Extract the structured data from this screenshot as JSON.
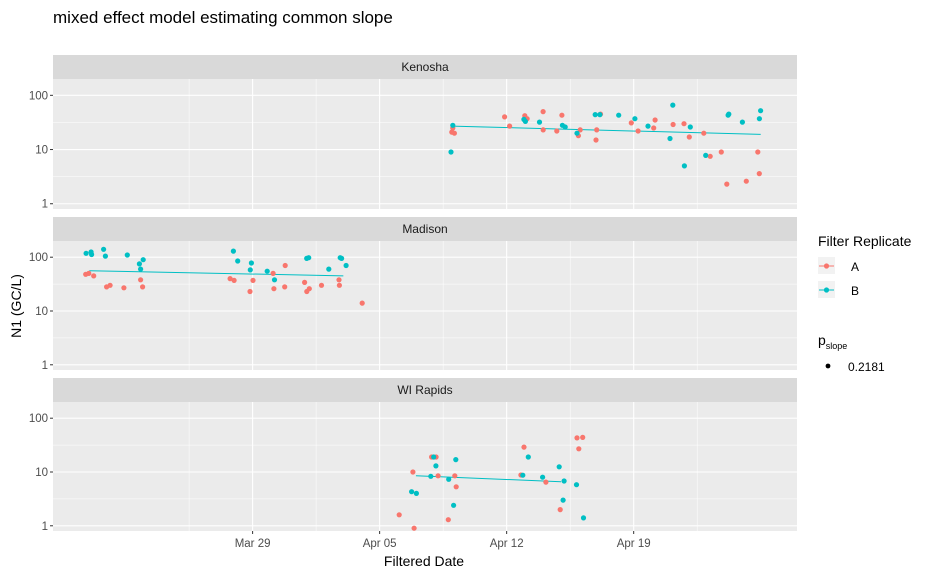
{
  "chart_data": {
    "type": "scatter",
    "title": "mixed effect model estimating common slope",
    "xlabel": "Filtered Date",
    "ylabel": "N1 (GC/L)",
    "y_scale": "log10",
    "ylim": [
      0.8,
      200
    ],
    "xlim": [
      "2020-03-18",
      "2020-04-28"
    ],
    "x_ticks": [
      {
        "date": "2020-03-29",
        "label": "Mar 29"
      },
      {
        "date": "2020-04-05",
        "label": "Apr 05"
      },
      {
        "date": "2020-04-12",
        "label": "Apr 12"
      },
      {
        "date": "2020-04-19",
        "label": "Apr 19"
      }
    ],
    "y_ticks": [
      {
        "value": 1,
        "label": "1"
      },
      {
        "value": 10,
        "label": "10"
      },
      {
        "value": 100,
        "label": "100"
      }
    ],
    "grid": true,
    "colors": {
      "A": "#F8766D",
      "B": "#00BFC4",
      "panel_bg": "#EBEBEB",
      "strip_bg": "#D9D9D9",
      "grid": "#FFFFFF"
    },
    "legend": {
      "position": "right",
      "title": "Filter Replicate",
      "items": [
        {
          "label": "A",
          "color": "#F8766D"
        },
        {
          "label": "B",
          "color": "#00BFC4"
        }
      ],
      "pslope_title_main": "p",
      "pslope_title_sub": "slope",
      "pslope_value": "0.2181"
    },
    "panels": [
      {
        "name": "Kenosha",
        "fit": {
          "x": [
            "2020-04-09",
            "2020-04-26"
          ],
          "y": [
            27,
            19
          ]
        },
        "series": [
          {
            "name": "A",
            "points": [
              [
                "2020-04-09",
                20
              ],
              [
                "2020-04-09",
                25
              ],
              [
                "2020-04-09",
                21
              ],
              [
                "2020-04-12",
                40
              ],
              [
                "2020-04-12",
                27
              ],
              [
                "2020-04-13",
                37
              ],
              [
                "2020-04-13",
                42
              ],
              [
                "2020-04-14",
                23
              ],
              [
                "2020-04-14",
                50
              ],
              [
                "2020-04-15",
                22
              ],
              [
                "2020-04-15",
                43
              ],
              [
                "2020-04-16",
                23
              ],
              [
                "2020-04-16",
                18
              ],
              [
                "2020-04-17",
                45
              ],
              [
                "2020-04-17",
                15
              ],
              [
                "2020-04-17",
                23
              ],
              [
                "2020-04-19",
                31
              ],
              [
                "2020-04-19",
                22
              ],
              [
                "2020-04-20",
                25
              ],
              [
                "2020-04-20",
                35
              ],
              [
                "2020-04-21",
                29
              ],
              [
                "2020-04-22",
                30
              ],
              [
                "2020-04-22",
                17
              ],
              [
                "2020-04-23",
                7.5
              ],
              [
                "2020-04-23",
                20
              ],
              [
                "2020-04-24",
                2.3
              ],
              [
                "2020-04-24",
                9
              ],
              [
                "2020-04-25",
                2.6
              ],
              [
                "2020-04-26",
                9
              ],
              [
                "2020-04-26",
                3.6
              ]
            ]
          },
          {
            "name": "B",
            "points": [
              [
                "2020-04-09",
                28
              ],
              [
                "2020-04-09",
                9
              ],
              [
                "2020-04-13",
                36
              ],
              [
                "2020-04-13",
                33
              ],
              [
                "2020-04-14",
                32
              ],
              [
                "2020-04-15",
                28
              ],
              [
                "2020-04-15",
                26
              ],
              [
                "2020-04-16",
                20
              ],
              [
                "2020-04-17",
                44
              ],
              [
                "2020-04-17",
                44
              ],
              [
                "2020-04-18",
                43
              ],
              [
                "2020-04-19",
                37
              ],
              [
                "2020-04-20",
                27
              ],
              [
                "2020-04-21",
                16
              ],
              [
                "2020-04-21",
                66
              ],
              [
                "2020-04-22",
                26
              ],
              [
                "2020-04-22",
                5
              ],
              [
                "2020-04-23",
                7.8
              ],
              [
                "2020-04-24",
                45
              ],
              [
                "2020-04-24",
                43
              ],
              [
                "2020-04-25",
                32
              ],
              [
                "2020-04-26",
                37
              ],
              [
                "2020-04-26",
                52
              ]
            ]
          }
        ]
      },
      {
        "name": "Madison",
        "fit": {
          "x": [
            "2020-03-20",
            "2020-04-03"
          ],
          "y": [
            56,
            45
          ]
        },
        "series": [
          {
            "name": "A",
            "points": [
              [
                "2020-03-20",
                45
              ],
              [
                "2020-03-20",
                48
              ],
              [
                "2020-03-20",
                50
              ],
              [
                "2020-03-21",
                30
              ],
              [
                "2020-03-21",
                28
              ],
              [
                "2020-03-22",
                27
              ],
              [
                "2020-03-23",
                38
              ],
              [
                "2020-03-23",
                28
              ],
              [
                "2020-03-28",
                37
              ],
              [
                "2020-03-28",
                40
              ],
              [
                "2020-03-29",
                23
              ],
              [
                "2020-03-29",
                37
              ],
              [
                "2020-03-30",
                26
              ],
              [
                "2020-03-30",
                50
              ],
              [
                "2020-03-31",
                28
              ],
              [
                "2020-03-31",
                70
              ],
              [
                "2020-04-01",
                26
              ],
              [
                "2020-04-01",
                23
              ],
              [
                "2020-04-01",
                34
              ],
              [
                "2020-04-02",
                30
              ],
              [
                "2020-04-03",
                30
              ],
              [
                "2020-04-03",
                38
              ],
              [
                "2020-04-04",
                14
              ]
            ]
          },
          {
            "name": "B",
            "points": [
              [
                "2020-03-20",
                118
              ],
              [
                "2020-03-20",
                112
              ],
              [
                "2020-03-20",
                125
              ],
              [
                "2020-03-21",
                105
              ],
              [
                "2020-03-21",
                140
              ],
              [
                "2020-03-22",
                110
              ],
              [
                "2020-03-23",
                90
              ],
              [
                "2020-03-23",
                75
              ],
              [
                "2020-03-23",
                60
              ],
              [
                "2020-03-28",
                130
              ],
              [
                "2020-03-28",
                85
              ],
              [
                "2020-03-29",
                78
              ],
              [
                "2020-03-29",
                58
              ],
              [
                "2020-03-30",
                55
              ],
              [
                "2020-03-30",
                38
              ],
              [
                "2020-04-01",
                95
              ],
              [
                "2020-04-01",
                98
              ],
              [
                "2020-04-02",
                60
              ],
              [
                "2020-04-03",
                98
              ],
              [
                "2020-04-03",
                95
              ],
              [
                "2020-04-03",
                70
              ]
            ]
          }
        ]
      },
      {
        "name": "WI Rapids",
        "fit": {
          "x": [
            "2020-04-07",
            "2020-04-15"
          ],
          "y": [
            8.5,
            6.6
          ]
        },
        "series": [
          {
            "name": "A",
            "points": [
              [
                "2020-04-06",
                1.6
              ],
              [
                "2020-04-07",
                0.9
              ],
              [
                "2020-04-07",
                10
              ],
              [
                "2020-04-08",
                8.5
              ],
              [
                "2020-04-08",
                19
              ],
              [
                "2020-04-08",
                19
              ],
              [
                "2020-04-09",
                8.5
              ],
              [
                "2020-04-09",
                5.3
              ],
              [
                "2020-04-09",
                1.3
              ],
              [
                "2020-04-13",
                29
              ],
              [
                "2020-04-13",
                8.8
              ],
              [
                "2020-04-14",
                6.5
              ],
              [
                "2020-04-15",
                2
              ],
              [
                "2020-04-16",
                27
              ],
              [
                "2020-04-16",
                43
              ],
              [
                "2020-04-16",
                44
              ]
            ]
          },
          {
            "name": "B",
            "points": [
              [
                "2020-04-07",
                4
              ],
              [
                "2020-04-07",
                4.3
              ],
              [
                "2020-04-08",
                19
              ],
              [
                "2020-04-08",
                13
              ],
              [
                "2020-04-08",
                8.3
              ],
              [
                "2020-04-09",
                17
              ],
              [
                "2020-04-09",
                7.3
              ],
              [
                "2020-04-09",
                2.4
              ],
              [
                "2020-04-13",
                8.7
              ],
              [
                "2020-04-13",
                19
              ],
              [
                "2020-04-14",
                8
              ],
              [
                "2020-04-15",
                12.5
              ],
              [
                "2020-04-15",
                3
              ],
              [
                "2020-04-15",
                6.8
              ],
              [
                "2020-04-16",
                5.8
              ],
              [
                "2020-04-16",
                1.4
              ]
            ]
          }
        ]
      }
    ]
  }
}
